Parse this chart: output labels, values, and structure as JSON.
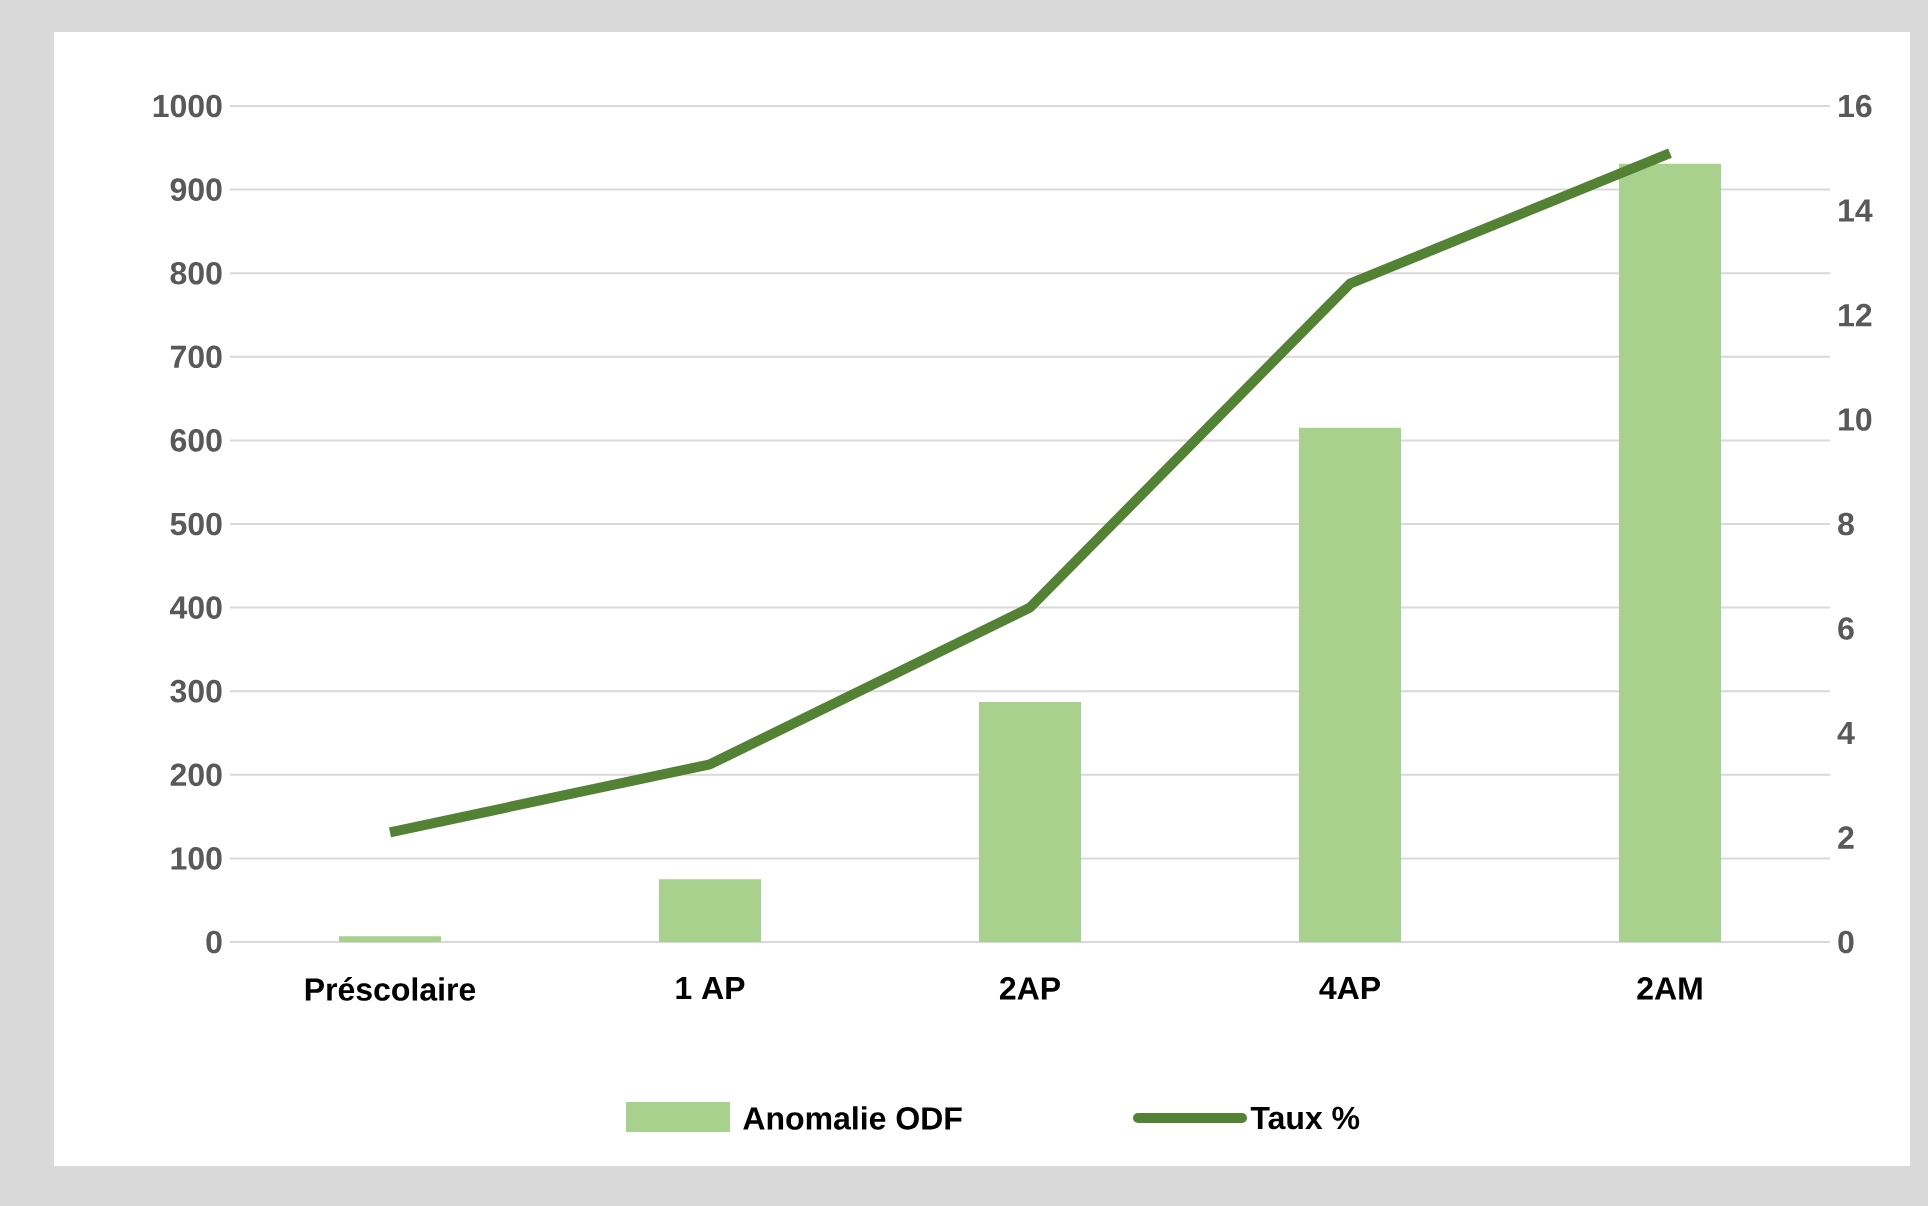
{
  "chart_data": {
    "type": "bar",
    "categories": [
      "Préscolaire",
      "1 AP",
      "2AP",
      "4AP",
      "2AM"
    ],
    "series": [
      {
        "name": "Anomalie ODF",
        "color": "#a9d18e",
        "values": [
          7,
          75,
          287,
          615,
          931
        ]
      },
      {
        "name": "Taux %",
        "type": "line",
        "axis": "y2",
        "color": "#548235",
        "values": [
          2.1,
          3.4,
          6.4,
          12.6,
          15.1
        ]
      }
    ],
    "ylim": [
      0,
      1000
    ],
    "yticks": [
      0,
      100,
      200,
      300,
      400,
      500,
      600,
      700,
      800,
      900,
      1000
    ],
    "y2lim": [
      0,
      16
    ],
    "y2ticks": [
      0,
      2,
      4,
      6,
      8,
      10,
      12,
      14,
      16
    ],
    "grid": "y",
    "legend": "bottom",
    "marker": "none",
    "line_style": "solid"
  }
}
